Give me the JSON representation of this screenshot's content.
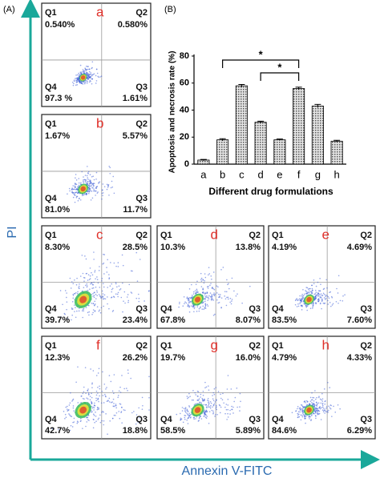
{
  "figure": {
    "panel_a_label": "(A)",
    "panel_b_label": "(B)",
    "y_axis_label": "PI",
    "x_axis_label": "Annexin V-FITC"
  },
  "flow_panels": [
    {
      "letter": "a",
      "quadrants": [
        {
          "name": "Q1",
          "value": "0.540%"
        },
        {
          "name": "Q2",
          "value": "0.580%"
        },
        {
          "name": "Q3",
          "value": "1.61%"
        },
        {
          "name": "Q4",
          "value": "97.3 %"
        }
      ]
    },
    {
      "letter": "b",
      "quadrants": [
        {
          "name": "Q1",
          "value": "1.67%"
        },
        {
          "name": "Q2",
          "value": "5.57%"
        },
        {
          "name": "Q3",
          "value": "11.7%"
        },
        {
          "name": "Q4",
          "value": "81.0%"
        }
      ]
    },
    {
      "letter": "c",
      "quadrants": [
        {
          "name": "Q1",
          "value": "8.30%"
        },
        {
          "name": "Q2",
          "value": "28.5%"
        },
        {
          "name": "Q3",
          "value": "23.4%"
        },
        {
          "name": "Q4",
          "value": "39.7%"
        }
      ]
    },
    {
      "letter": "d",
      "quadrants": [
        {
          "name": "Q1",
          "value": "10.3%"
        },
        {
          "name": "Q2",
          "value": "13.8%"
        },
        {
          "name": "Q3",
          "value": "8.07%"
        },
        {
          "name": "Q4",
          "value": "67.8%"
        }
      ]
    },
    {
      "letter": "e",
      "quadrants": [
        {
          "name": "Q1",
          "value": "4.19%"
        },
        {
          "name": "Q2",
          "value": "4.69%"
        },
        {
          "name": "Q3",
          "value": "7.60%"
        },
        {
          "name": "Q4",
          "value": "83.5%"
        }
      ]
    },
    {
      "letter": "f",
      "quadrants": [
        {
          "name": "Q1",
          "value": "12.3%"
        },
        {
          "name": "Q2",
          "value": "26.2%"
        },
        {
          "name": "Q3",
          "value": "18.8%"
        },
        {
          "name": "Q4",
          "value": "42.7%"
        }
      ]
    },
    {
      "letter": "g",
      "quadrants": [
        {
          "name": "Q1",
          "value": "19.7%"
        },
        {
          "name": "Q2",
          "value": "16.0%"
        },
        {
          "name": "Q3",
          "value": "5.89%"
        },
        {
          "name": "Q4",
          "value": "58.5%"
        }
      ]
    },
    {
      "letter": "h",
      "quadrants": [
        {
          "name": "Q1",
          "value": "4.79%"
        },
        {
          "name": "Q2",
          "value": "4.33%"
        },
        {
          "name": "Q3",
          "value": "6.29%"
        },
        {
          "name": "Q4",
          "value": "84.6%"
        }
      ]
    }
  ],
  "chart_data": {
    "type": "bar",
    "y_label": "Apoptosis and necrosis rate (%)",
    "x_label": "Different drug formulations",
    "categories": [
      "a",
      "b",
      "c",
      "d",
      "e",
      "f",
      "g",
      "h"
    ],
    "values": [
      3,
      18,
      58,
      31,
      18,
      56,
      43,
      17
    ],
    "errors": [
      0.5,
      0.8,
      1,
      0.8,
      0.6,
      1,
      1.2,
      0.6
    ],
    "color": "#bdbdbd",
    "ylim": [
      0,
      80
    ],
    "yticks": [
      0,
      20,
      40,
      60,
      80
    ],
    "grid": false,
    "annotations": [
      {
        "text": "*"
      },
      {
        "text": "*"
      }
    ]
  }
}
